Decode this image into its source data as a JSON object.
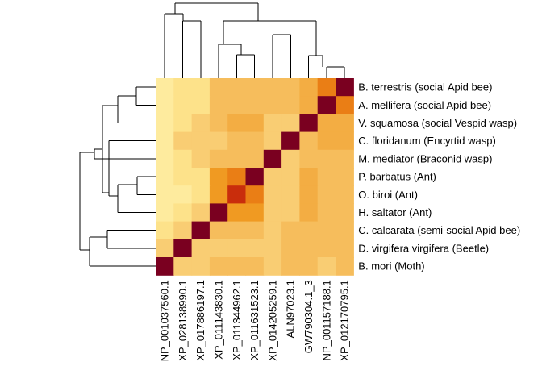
{
  "chart_data": {
    "type": "heatmap",
    "title": "",
    "xlabel": "",
    "ylabel": "",
    "row_labels": [
      "B. terrestris (social Apid bee)",
      "A. mellifera (social Apid bee)",
      "V. squamosa (social Vespid wasp)",
      "C. floridanum (Encyrtid wasp)",
      "M. mediator (Braconid wasp)",
      "P. barbatus (Ant)",
      "O. biroi (Ant)",
      "H. saltator (Ant)",
      "C. calcarata (semi-social Apid bee)",
      "D. virgifera virgifera (Beetle)",
      "B. mori (Moth)"
    ],
    "col_labels": [
      "NP_001037560.1",
      "XP_028138990.1",
      "XP_017886197.1",
      "XP_011143830.1",
      "XP_011344962.1",
      "XP_011631523.1",
      "XP_014205259.1",
      "ALN97023.1",
      "GW790304.1_3",
      "NP_001157188.1",
      "XP_012170795.1"
    ],
    "values": [
      [
        0.1,
        0.15,
        0.15,
        0.35,
        0.35,
        0.35,
        0.35,
        0.35,
        0.45,
        0.65,
        1.0
      ],
      [
        0.1,
        0.15,
        0.15,
        0.35,
        0.35,
        0.35,
        0.35,
        0.35,
        0.45,
        1.0,
        0.65
      ],
      [
        0.1,
        0.15,
        0.25,
        0.35,
        0.45,
        0.45,
        0.25,
        0.25,
        1.0,
        0.45,
        0.45
      ],
      [
        0.1,
        0.25,
        0.25,
        0.25,
        0.35,
        0.35,
        0.25,
        1.0,
        0.35,
        0.45,
        0.45
      ],
      [
        0.1,
        0.15,
        0.25,
        0.35,
        0.35,
        0.35,
        1.0,
        0.25,
        0.35,
        0.35,
        0.35
      ],
      [
        0.1,
        0.15,
        0.15,
        0.55,
        0.65,
        1.0,
        0.25,
        0.25,
        0.45,
        0.35,
        0.35
      ],
      [
        0.1,
        0.1,
        0.15,
        0.55,
        0.85,
        0.65,
        0.25,
        0.25,
        0.45,
        0.35,
        0.35
      ],
      [
        0.1,
        0.15,
        0.25,
        1.0,
        0.55,
        0.55,
        0.25,
        0.25,
        0.45,
        0.35,
        0.35
      ],
      [
        0.15,
        0.25,
        1.0,
        0.35,
        0.35,
        0.35,
        0.25,
        0.35,
        0.35,
        0.35,
        0.35
      ],
      [
        0.25,
        1.0,
        0.25,
        0.25,
        0.25,
        0.25,
        0.25,
        0.35,
        0.35,
        0.35,
        0.35
      ],
      [
        1.0,
        0.25,
        0.25,
        0.35,
        0.35,
        0.35,
        0.25,
        0.35,
        0.35,
        0.25,
        0.35
      ]
    ],
    "value_range": [
      0,
      1
    ],
    "color_scale": [
      "#ffffc8",
      "#fde38c",
      "#f8c66a",
      "#f4b14a",
      "#ef961b",
      "#e56a10",
      "#c82a0c",
      "#7a0020"
    ],
    "grid": false,
    "legend": "none",
    "row_dendrogram": "left",
    "col_dendrogram": "top"
  }
}
